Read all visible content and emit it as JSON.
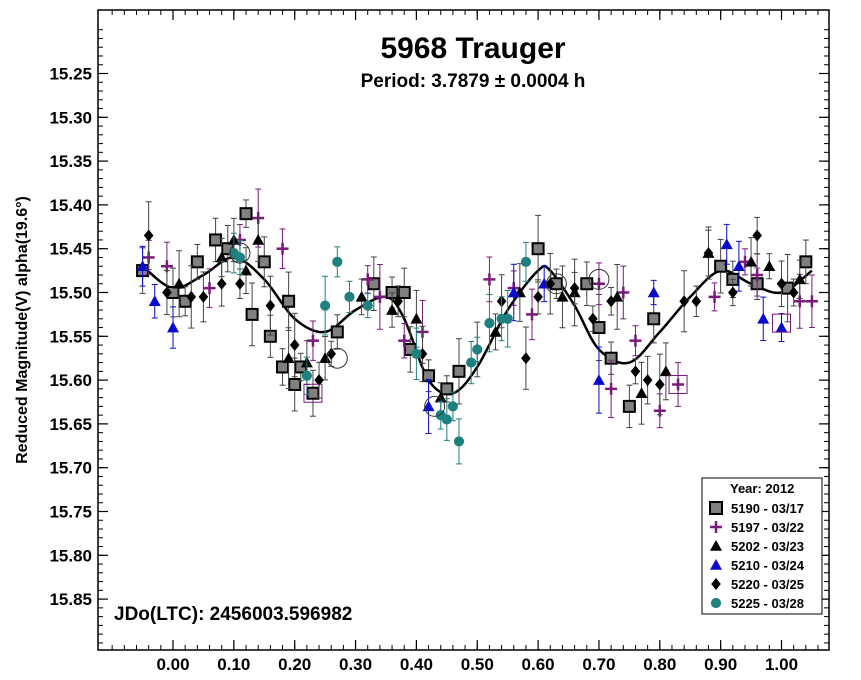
{
  "chart_data": {
    "type": "scatter",
    "title": "5968 Trauger",
    "subtitle": "Period: 3.7879 ± 0.0004 h",
    "ylabel": "Reduced Magnitude(V) alpha(19.6°)",
    "xlabel": "",
    "annotation": "JDo(LTC): 2456003.596982",
    "xlim": [
      -0.08,
      1.12
    ],
    "ylim": [
      15.2,
      15.9
    ],
    "y_inverted": true,
    "x_ticks": [
      "0.00",
      "0.10",
      "0.20",
      "0.30",
      "0.40",
      "0.50",
      "0.60",
      "0.70",
      "0.80",
      "0.90",
      "1.00"
    ],
    "y_ticks": [
      "15.25",
      "15.30",
      "15.35",
      "15.40",
      "15.45",
      "15.50",
      "15.55",
      "15.60",
      "15.65",
      "15.70",
      "15.75",
      "15.80",
      "15.85"
    ],
    "legend": {
      "title": "Year: 2012",
      "placement": "bottom-right"
    },
    "fit_curve": {
      "x": [
        -0.05,
        0.0,
        0.05,
        0.1,
        0.15,
        0.2,
        0.25,
        0.3,
        0.35,
        0.38,
        0.42,
        0.46,
        0.5,
        0.55,
        0.6,
        0.62,
        0.66,
        0.7,
        0.75,
        0.8,
        0.85,
        0.9,
        0.95,
        1.0,
        1.05
      ],
      "y": [
        15.47,
        15.495,
        15.48,
        15.46,
        15.485,
        15.53,
        15.545,
        15.52,
        15.505,
        15.53,
        15.6,
        15.615,
        15.585,
        15.52,
        15.475,
        15.475,
        15.515,
        15.565,
        15.58,
        15.545,
        15.505,
        15.475,
        15.49,
        15.5,
        15.475
      ]
    },
    "series": [
      {
        "name": "5190 - 03/17",
        "marker": "square",
        "color": "#808080",
        "x": [
          -0.05,
          0.0,
          0.02,
          0.04,
          0.07,
          0.09,
          0.12,
          0.13,
          0.15,
          0.16,
          0.18,
          0.19,
          0.2,
          0.21,
          0.23,
          0.27,
          0.33,
          0.36,
          0.38,
          0.39,
          0.42,
          0.45,
          0.47,
          0.6,
          0.63,
          0.68,
          0.7,
          0.72,
          0.75,
          0.79,
          0.9,
          0.92,
          0.96,
          1.01,
          1.04
        ],
        "y": [
          15.475,
          15.5,
          15.51,
          15.465,
          15.44,
          15.45,
          15.41,
          15.525,
          15.465,
          15.55,
          15.585,
          15.51,
          15.605,
          15.585,
          15.615,
          15.545,
          15.49,
          15.5,
          15.5,
          15.565,
          15.595,
          15.61,
          15.59,
          15.45,
          15.49,
          15.49,
          15.54,
          15.575,
          15.63,
          15.53,
          15.47,
          15.485,
          15.49,
          15.495,
          15.465
        ]
      },
      {
        "name": "5197 - 03/22",
        "marker": "plus",
        "color": "#7a1a7a",
        "x": [
          -0.04,
          -0.01,
          0.06,
          0.11,
          0.14,
          0.18,
          0.23,
          0.32,
          0.34,
          0.38,
          0.41,
          0.52,
          0.56,
          0.59,
          0.7,
          0.72,
          0.74,
          0.76,
          0.8,
          0.83,
          0.89,
          0.94,
          0.96,
          1.03,
          1.05
        ],
        "y": [
          15.46,
          15.47,
          15.495,
          15.44,
          15.415,
          15.45,
          15.555,
          15.485,
          15.505,
          15.555,
          15.545,
          15.485,
          15.495,
          15.525,
          15.49,
          15.61,
          15.5,
          15.555,
          15.635,
          15.605,
          15.505,
          15.465,
          15.48,
          15.51,
          15.51
        ]
      },
      {
        "name": "5202 - 03/23",
        "marker": "triangle",
        "color": "#000000",
        "x": [
          0.01,
          0.08,
          0.1,
          0.12,
          0.14,
          0.19,
          0.22,
          0.25,
          0.31,
          0.36,
          0.4,
          0.44,
          0.53,
          0.57,
          0.64,
          0.66,
          0.73,
          0.77,
          0.81,
          0.88,
          0.95,
          0.98,
          1.03
        ],
        "y": [
          15.49,
          15.46,
          15.44,
          15.475,
          15.44,
          15.575,
          15.58,
          15.575,
          15.505,
          15.52,
          15.53,
          15.62,
          15.545,
          15.5,
          15.505,
          15.5,
          15.505,
          15.615,
          15.59,
          15.455,
          15.465,
          15.47,
          15.485
        ]
      },
      {
        "name": "5210 - 03/24",
        "marker": "triangle",
        "color": "#0a0acc",
        "x": [
          -0.05,
          -0.03,
          0.0,
          0.42,
          0.56,
          0.61,
          0.7,
          0.79,
          0.91,
          0.93,
          0.97,
          1.0
        ],
        "y": [
          15.47,
          15.51,
          15.54,
          15.63,
          15.5,
          15.49,
          15.6,
          15.5,
          15.445,
          15.47,
          15.53,
          15.54
        ]
      },
      {
        "name": "5220 - 03/25",
        "marker": "diamond",
        "color": "#000000",
        "x": [
          -0.04,
          -0.01,
          0.03,
          0.05,
          0.08,
          0.11,
          0.16,
          0.2,
          0.24,
          0.26,
          0.37,
          0.41,
          0.5,
          0.54,
          0.58,
          0.6,
          0.62,
          0.66,
          0.69,
          0.72,
          0.76,
          0.78,
          0.8,
          0.84,
          0.86,
          0.88,
          0.92,
          0.96,
          1.0,
          1.02
        ],
        "y": [
          15.435,
          15.5,
          15.505,
          15.505,
          15.49,
          15.49,
          15.515,
          15.56,
          15.6,
          15.57,
          15.51,
          15.57,
          15.565,
          15.51,
          15.575,
          15.505,
          15.49,
          15.495,
          15.53,
          15.51,
          15.59,
          15.6,
          15.605,
          15.51,
          15.51,
          15.455,
          15.5,
          15.435,
          15.49,
          15.5
        ]
      },
      {
        "name": "5225 - 03/28",
        "marker": "circle",
        "color": "#1f8080",
        "x": [
          0.1,
          0.11,
          0.22,
          0.25,
          0.27,
          0.29,
          0.32,
          0.4,
          0.44,
          0.45,
          0.46,
          0.47,
          0.49,
          0.5,
          0.52,
          0.54,
          0.55,
          0.58
        ],
        "y": [
          15.455,
          15.46,
          15.595,
          15.515,
          15.465,
          15.505,
          15.515,
          15.57,
          15.64,
          15.645,
          15.63,
          15.67,
          15.58,
          15.565,
          15.535,
          15.53,
          15.53,
          15.465
        ]
      }
    ],
    "circled_points": [
      {
        "x": 0.11,
        "y": 15.455
      },
      {
        "x": 0.43,
        "y": 15.63
      },
      {
        "x": 0.63,
        "y": 15.49
      },
      {
        "x": 0.7,
        "y": 15.485
      },
      {
        "x": 0.27,
        "y": 15.575
      }
    ],
    "boxed_points": [
      {
        "x": 0.23,
        "y": 15.615
      },
      {
        "x": 0.83,
        "y": 15.605
      },
      {
        "x": 1.0,
        "y": 15.535
      }
    ]
  }
}
